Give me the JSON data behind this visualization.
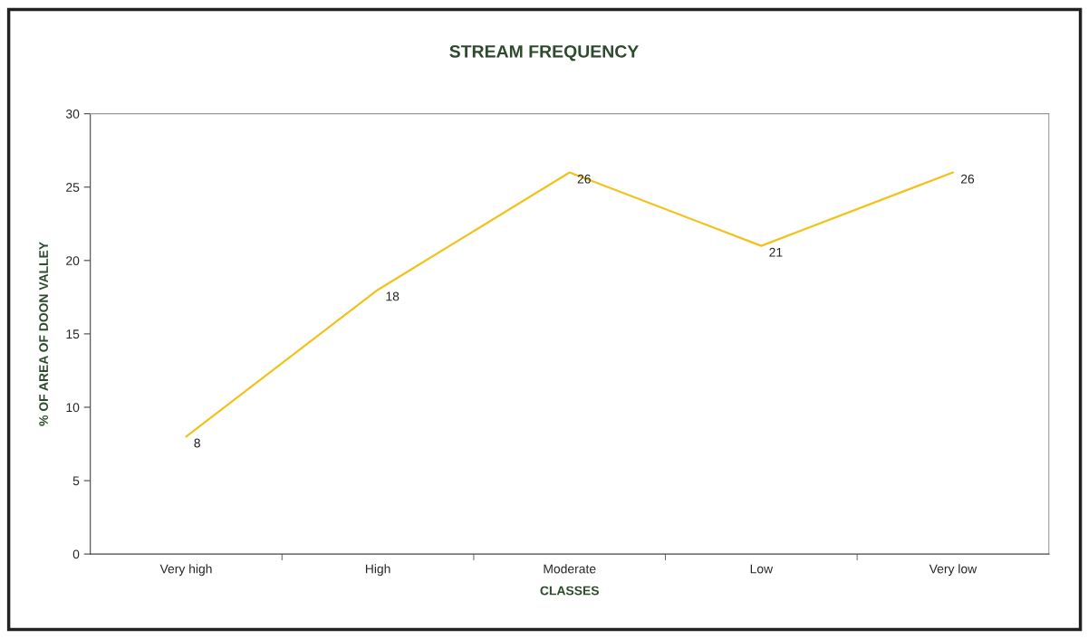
{
  "chart_data": {
    "type": "line",
    "title": "STREAM FREQUENCY",
    "xlabel": "CLASSES",
    "ylabel": "% OF AREA OF DOON VALLEY",
    "categories": [
      "Very high",
      "High",
      "Moderate",
      "Low",
      "Very low"
    ],
    "series": [
      {
        "color": "#f2c21a",
        "values": [
          8,
          18,
          26,
          21,
          26
        ]
      }
    ],
    "ylim": [
      0,
      30
    ],
    "yticks": [
      0,
      5,
      10,
      15,
      20,
      25,
      30
    ],
    "data_labels": true,
    "grid": false,
    "legend": false,
    "marker": "none",
    "line_style": "solid"
  }
}
